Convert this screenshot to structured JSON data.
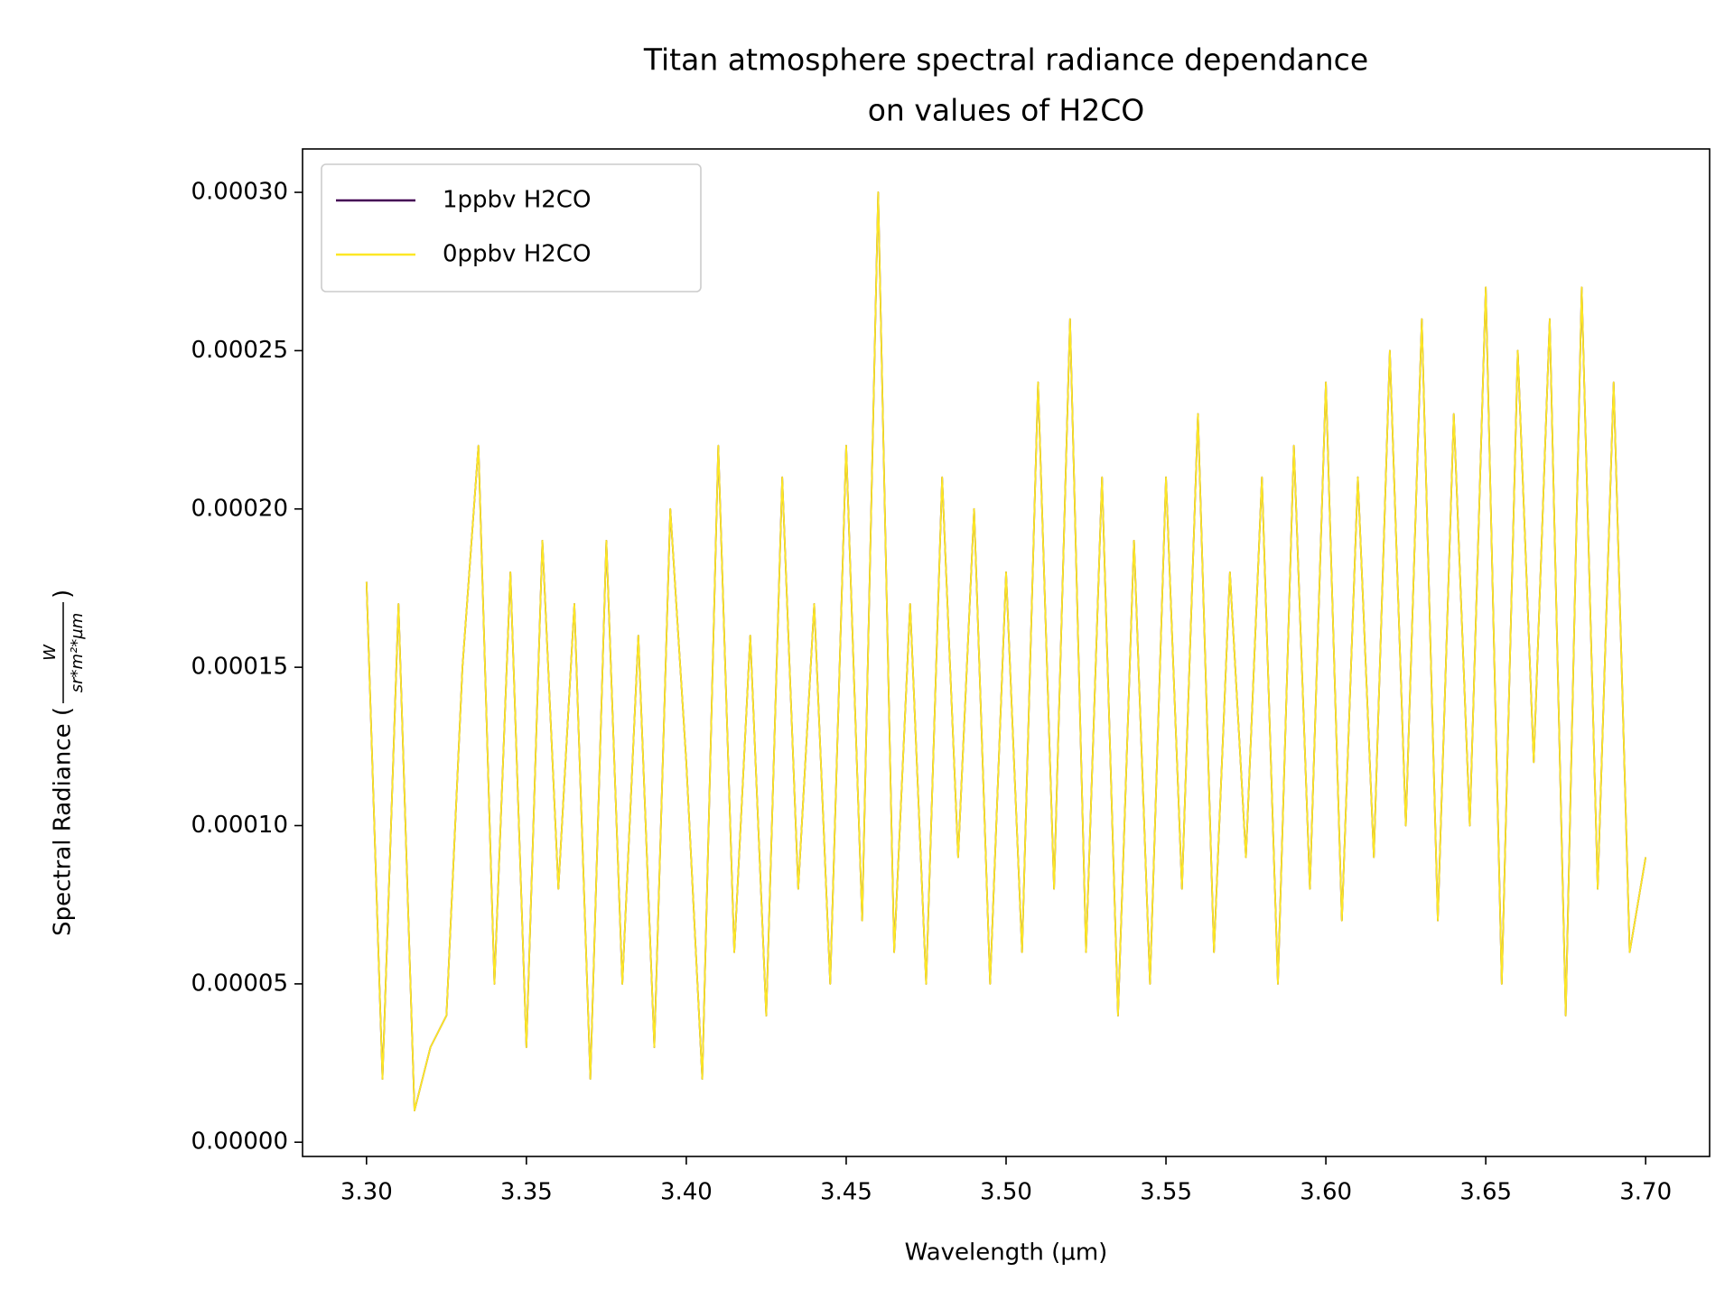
{
  "chart_data": {
    "type": "line",
    "title": [
      "Titan atmosphere spectral radiance dependance",
      "on values of H2CO"
    ],
    "xlabel": "Wavelength (µm)",
    "ylabel_prefix": "Spectral Radiance (",
    "ylabel_numerator": "W",
    "ylabel_denominator": "sr*m²*µm",
    "ylabel_suffix": ")",
    "x": [
      3.3,
      3.305,
      3.31,
      3.315,
      3.32,
      3.325,
      3.33,
      3.335,
      3.34,
      3.345,
      3.35,
      3.355,
      3.36,
      3.365,
      3.37,
      3.375,
      3.38,
      3.385,
      3.39,
      3.395,
      3.4,
      3.405,
      3.41,
      3.415,
      3.42,
      3.425,
      3.43,
      3.435,
      3.44,
      3.445,
      3.45,
      3.455,
      3.46,
      3.465,
      3.47,
      3.475,
      3.48,
      3.485,
      3.49,
      3.495,
      3.5,
      3.505,
      3.51,
      3.515,
      3.52,
      3.525,
      3.53,
      3.535,
      3.54,
      3.545,
      3.55,
      3.555,
      3.56,
      3.565,
      3.57,
      3.575,
      3.58,
      3.585,
      3.59,
      3.595,
      3.6,
      3.605,
      3.61,
      3.615,
      3.62,
      3.625,
      3.63,
      3.635,
      3.64,
      3.645,
      3.65,
      3.655,
      3.66,
      3.665,
      3.67,
      3.675,
      3.68,
      3.685,
      3.69,
      3.695,
      3.7
    ],
    "series": [
      {
        "name": "1ppbv H2CO",
        "color": "#440154",
        "values": [
          0.000177,
          2e-05,
          0.00017,
          1e-05,
          3e-05,
          4e-05,
          0.00015,
          0.00022,
          5e-05,
          0.00018,
          3e-05,
          0.00019,
          8e-05,
          0.00017,
          2e-05,
          0.00019,
          5e-05,
          0.00016,
          3e-05,
          0.0002,
          0.00012,
          2e-05,
          0.00022,
          6e-05,
          0.00016,
          4e-05,
          0.00021,
          8e-05,
          0.00017,
          5e-05,
          0.00022,
          7e-05,
          0.0003,
          6e-05,
          0.00017,
          5e-05,
          0.00021,
          9e-05,
          0.0002,
          5e-05,
          0.00018,
          6e-05,
          0.00024,
          8e-05,
          0.00026,
          6e-05,
          0.00021,
          4e-05,
          0.00019,
          5e-05,
          0.00021,
          8e-05,
          0.00023,
          6e-05,
          0.00018,
          9e-05,
          0.00021,
          5e-05,
          0.00022,
          8e-05,
          0.00024,
          7e-05,
          0.00021,
          9e-05,
          0.00025,
          0.0001,
          0.00026,
          7e-05,
          0.00023,
          0.0001,
          0.00027,
          5e-05,
          0.00025,
          0.00012,
          0.00026,
          4e-05,
          0.00027,
          8e-05,
          0.00024,
          6e-05,
          9e-05
        ]
      },
      {
        "name": "0ppbv H2CO",
        "color": "#fde725",
        "values": [
          0.000177,
          2e-05,
          0.00017,
          1e-05,
          3e-05,
          4e-05,
          0.00015,
          0.00022,
          5e-05,
          0.00018,
          3e-05,
          0.00019,
          8e-05,
          0.00017,
          2e-05,
          0.00019,
          5e-05,
          0.00016,
          3e-05,
          0.0002,
          0.00012,
          2e-05,
          0.00022,
          6e-05,
          0.00016,
          4e-05,
          0.00021,
          8e-05,
          0.00017,
          5e-05,
          0.00022,
          7e-05,
          0.0003,
          6e-05,
          0.00017,
          5e-05,
          0.00021,
          9e-05,
          0.0002,
          5e-05,
          0.00018,
          6e-05,
          0.00024,
          8e-05,
          0.00026,
          6e-05,
          0.00021,
          4e-05,
          0.00019,
          5e-05,
          0.00021,
          8e-05,
          0.00023,
          6e-05,
          0.00018,
          9e-05,
          0.00021,
          5e-05,
          0.00022,
          8e-05,
          0.00024,
          7e-05,
          0.00021,
          9e-05,
          0.00025,
          0.0001,
          0.00026,
          7e-05,
          0.00023,
          0.0001,
          0.00027,
          5e-05,
          0.00025,
          0.00012,
          0.00026,
          4e-05,
          0.00027,
          8e-05,
          0.00024,
          6e-05,
          9e-05
        ]
      }
    ],
    "xlim": [
      3.28,
      3.72
    ],
    "ylim": [
      -4.5e-06,
      0.0003137
    ],
    "xticks": [
      {
        "value": 3.3,
        "label": "3.30"
      },
      3.35,
      {
        "value": 3.4,
        "label": "3.40"
      },
      3.45,
      {
        "value": 3.5,
        "label": "3.50"
      },
      3.55,
      {
        "value": 3.6,
        "label": "3.60"
      },
      3.65,
      {
        "value": 3.7,
        "label": "3.70"
      }
    ],
    "yticks": [
      {
        "value": 0,
        "label": "0.00000"
      },
      {
        "value": 5e-05,
        "label": "0.00005"
      },
      {
        "value": 0.0001,
        "label": "0.00010"
      },
      {
        "value": 0.00015,
        "label": "0.00015"
      },
      {
        "value": 0.0002,
        "label": "0.00020"
      },
      {
        "value": 0.00025,
        "label": "0.00025"
      },
      {
        "value": 0.0003,
        "label": "0.00030"
      }
    ],
    "grid": false,
    "legend": "upper left"
  }
}
